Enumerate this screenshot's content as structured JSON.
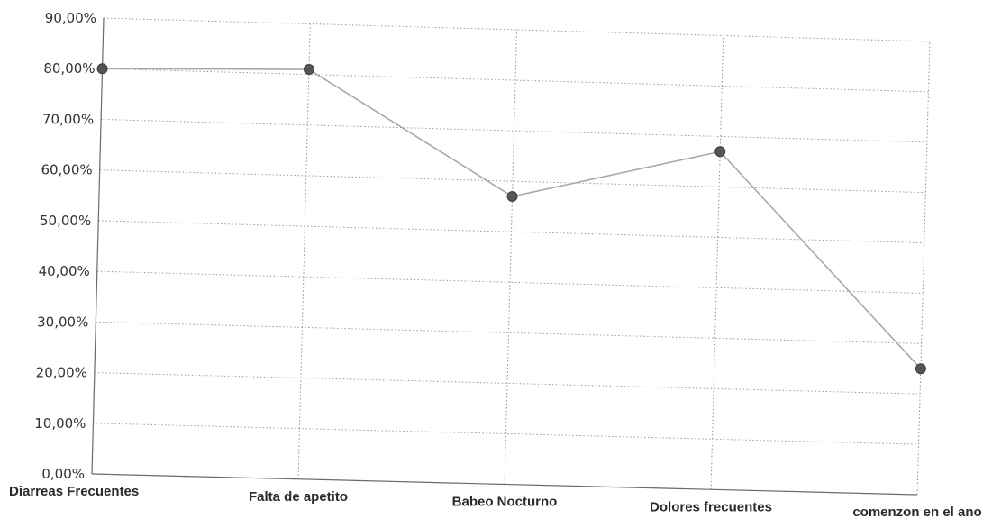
{
  "chart_data": {
    "type": "line",
    "title": "",
    "xlabel": "",
    "ylabel": "",
    "categories": [
      "Diarreas Frecuentes",
      "Falta de apetito",
      "Babeo Nocturno",
      "Dolores frecuentes",
      "comenzon en el ano"
    ],
    "series": [
      {
        "values": [
          80,
          81,
          57,
          67,
          25
        ]
      }
    ],
    "ylim": [
      0,
      90
    ],
    "yticks": [
      "0,00%",
      "10,00%",
      "20,00%",
      "30,00%",
      "40,00%",
      "50,00%",
      "60,00%",
      "70,00%",
      "80,00%",
      "90,00%"
    ],
    "grid": true,
    "legend": "none",
    "colors": {
      "line": "#a8a8a8",
      "point": "#555555",
      "grid": "#9a9a9a"
    }
  }
}
